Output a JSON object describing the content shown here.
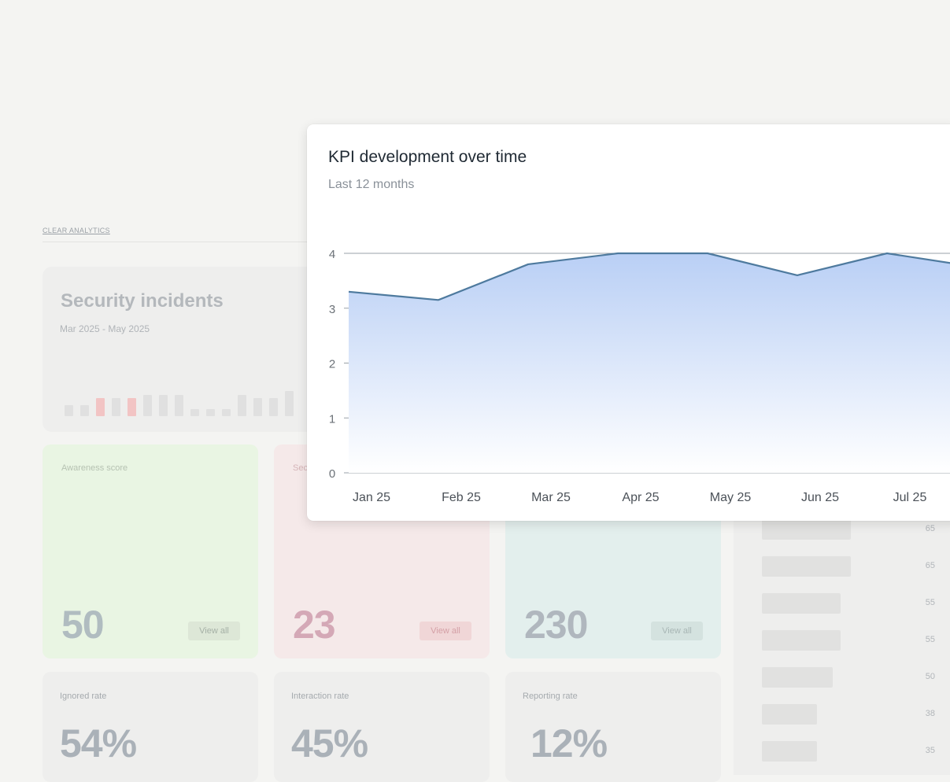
{
  "brand": "CLEAR ANALYTICS",
  "incidents": {
    "title": "Security incidents",
    "range": "Mar 2025 - May 2025",
    "bars": [
      {
        "v": 3,
        "hi": false
      },
      {
        "v": 3,
        "hi": false
      },
      {
        "v": 5,
        "hi": true
      },
      {
        "v": 5,
        "hi": false
      },
      {
        "v": 5,
        "hi": true
      },
      {
        "v": 6,
        "hi": false
      },
      {
        "v": 6,
        "hi": false
      },
      {
        "v": 6,
        "hi": false
      },
      {
        "v": 2,
        "hi": false
      },
      {
        "v": 2,
        "hi": false
      },
      {
        "v": 2,
        "hi": false
      },
      {
        "v": 6,
        "hi": false
      },
      {
        "v": 5,
        "hi": false
      },
      {
        "v": 5,
        "hi": false
      },
      {
        "v": 7,
        "hi": false
      }
    ]
  },
  "cards": {
    "awareness": {
      "label": "Awareness score",
      "value": "50",
      "action": "View all"
    },
    "second": {
      "label": "Sec",
      "value": "23",
      "action": "View all"
    },
    "third": {
      "value": "230",
      "action": "View all"
    }
  },
  "rates": [
    {
      "label": "Ignored rate",
      "value": "54%"
    },
    {
      "label": "Interaction rate",
      "value": "45%"
    },
    {
      "label": "Reporting rate",
      "value": "12%"
    }
  ],
  "ranking": [
    {
      "value": "65",
      "fraction": 0.63
    },
    {
      "value": "65",
      "fraction": 0.63
    },
    {
      "value": "55",
      "fraction": 0.555
    },
    {
      "value": "55",
      "fraction": 0.555
    },
    {
      "value": "50",
      "fraction": 0.5
    },
    {
      "value": "38",
      "fraction": 0.39
    },
    {
      "value": "35",
      "fraction": 0.39
    }
  ],
  "chart": {
    "title": "KPI development over time",
    "subtitle": "Last 12 months"
  },
  "chart_data": {
    "type": "area",
    "title": "KPI development over time",
    "subtitle": "Last 12 months",
    "categories": [
      "Jan 25",
      "Feb 25",
      "Mar 25",
      "Apr 25",
      "May 25",
      "Jun 25",
      "Jul 25"
    ],
    "values": [
      3.3,
      3.15,
      3.8,
      4.0,
      4.0,
      3.6,
      4.0
    ],
    "trailing_value": 3.75,
    "yticks": [
      0,
      1,
      2,
      3,
      4
    ],
    "ylim": [
      0,
      4
    ],
    "grid": true,
    "line_color": "#4e7a9e",
    "fill_top": "#b9cff5",
    "fill_bottom": "#ffffff"
  }
}
